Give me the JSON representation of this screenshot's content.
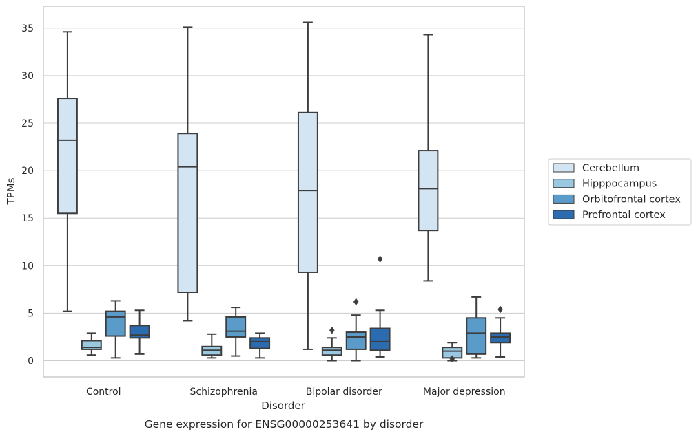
{
  "chart_data": {
    "type": "box",
    "title": "",
    "caption": "Gene expression for ENSG00000253641 by disorder",
    "xlabel": "Disorder",
    "ylabel": "TPMs",
    "ylim": [
      -1.7,
      37.3
    ],
    "yticks": [
      0,
      5,
      10,
      15,
      20,
      25,
      30,
      35
    ],
    "grid": "horizontal",
    "legend_position": "right",
    "categories": [
      "Control",
      "Schizophrenia",
      "Bipolar disorder",
      "Major depression"
    ],
    "series": [
      {
        "name": "Cerebellum",
        "color": "#d3e4f3",
        "boxes": [
          {
            "category": "Control",
            "whisker_low": 5.2,
            "q1": 15.5,
            "median": 23.2,
            "q3": 27.6,
            "whisker_high": 34.6,
            "outliers": []
          },
          {
            "category": "Schizophrenia",
            "whisker_low": 4.2,
            "q1": 7.2,
            "median": 20.4,
            "q3": 23.9,
            "whisker_high": 35.1,
            "outliers": []
          },
          {
            "category": "Bipolar disorder",
            "whisker_low": 1.2,
            "q1": 9.3,
            "median": 17.9,
            "q3": 26.1,
            "whisker_high": 35.6,
            "outliers": []
          },
          {
            "category": "Major depression",
            "whisker_low": 8.4,
            "q1": 13.7,
            "median": 18.1,
            "q3": 22.1,
            "whisker_high": 34.3,
            "outliers": []
          }
        ]
      },
      {
        "name": "Hipppocampus",
        "color": "#9ac8e0",
        "boxes": [
          {
            "category": "Control",
            "whisker_low": 0.6,
            "q1": 1.2,
            "median": 1.4,
            "q3": 2.1,
            "whisker_high": 2.9,
            "outliers": []
          },
          {
            "category": "Schizophrenia",
            "whisker_low": 0.3,
            "q1": 0.6,
            "median": 1.1,
            "q3": 1.5,
            "whisker_high": 2.8,
            "outliers": []
          },
          {
            "category": "Bipolar disorder",
            "whisker_low": 0.0,
            "q1": 0.6,
            "median": 1.1,
            "q3": 1.4,
            "whisker_high": 2.4,
            "outliers": [
              3.2
            ]
          },
          {
            "category": "Major depression",
            "whisker_low": 0.0,
            "q1": 0.3,
            "median": 1.0,
            "q3": 1.4,
            "whisker_high": 1.9,
            "outliers": [
              0.2
            ]
          }
        ]
      },
      {
        "name": "Orbitofrontal cortex",
        "color": "#5a9bc9",
        "boxes": [
          {
            "category": "Control",
            "whisker_low": 0.3,
            "q1": 2.6,
            "median": 4.6,
            "q3": 5.2,
            "whisker_high": 6.3,
            "outliers": []
          },
          {
            "category": "Schizophrenia",
            "whisker_low": 0.5,
            "q1": 2.5,
            "median": 3.1,
            "q3": 4.6,
            "whisker_high": 5.6,
            "outliers": []
          },
          {
            "category": "Bipolar disorder",
            "whisker_low": 0.0,
            "q1": 1.2,
            "median": 2.5,
            "q3": 3.0,
            "whisker_high": 4.8,
            "outliers": [
              6.2
            ]
          },
          {
            "category": "Major depression",
            "whisker_low": 0.3,
            "q1": 0.7,
            "median": 2.9,
            "q3": 4.5,
            "whisker_high": 6.7,
            "outliers": []
          }
        ]
      },
      {
        "name": "Prefrontal cortex",
        "color": "#2b6bb0",
        "boxes": [
          {
            "category": "Control",
            "whisker_low": 0.7,
            "q1": 2.4,
            "median": 2.7,
            "q3": 3.7,
            "whisker_high": 5.3,
            "outliers": []
          },
          {
            "category": "Schizophrenia",
            "whisker_low": 0.3,
            "q1": 1.3,
            "median": 2.0,
            "q3": 2.4,
            "whisker_high": 2.9,
            "outliers": []
          },
          {
            "category": "Bipolar disorder",
            "whisker_low": 0.4,
            "q1": 1.1,
            "median": 2.0,
            "q3": 3.4,
            "whisker_high": 5.3,
            "outliers": [
              10.7
            ]
          },
          {
            "category": "Major depression",
            "whisker_low": 0.4,
            "q1": 1.9,
            "median": 2.5,
            "q3": 2.9,
            "whisker_high": 4.5,
            "outliers": [
              5.4
            ]
          }
        ]
      }
    ],
    "colors": {
      "grid": "#cccccc",
      "frame": "#cccccc",
      "box_edge": "#3d3d3d",
      "text": "#262626"
    }
  }
}
